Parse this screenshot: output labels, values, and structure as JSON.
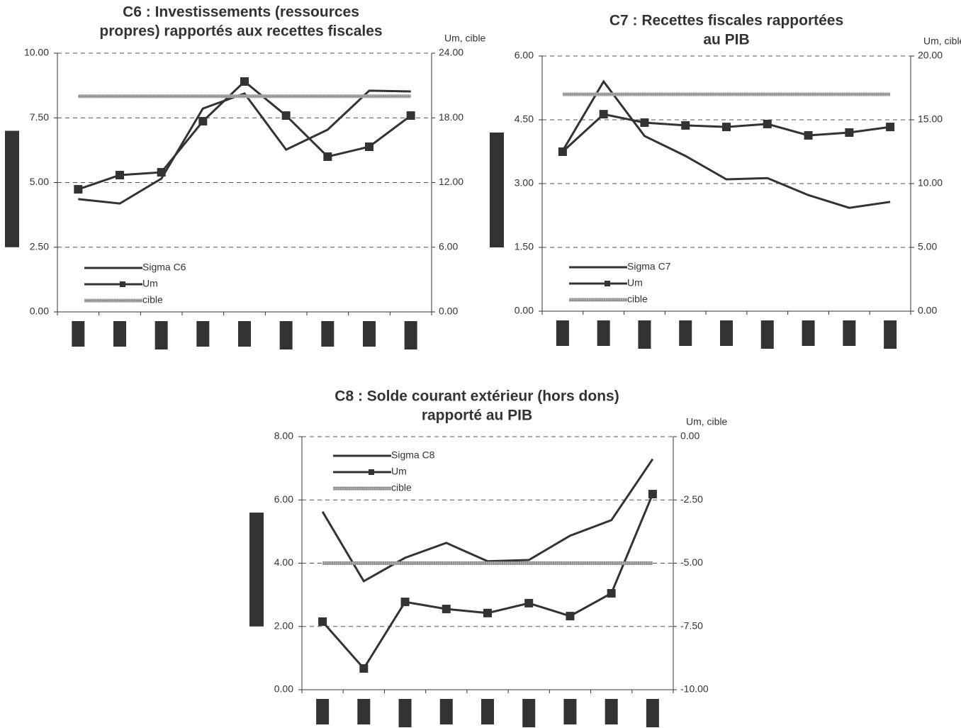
{
  "chart_data": [
    {
      "type": "line",
      "title": [
        "C6 : Investissements (ressources",
        "propres) rapportés aux recettes fiscales"
      ],
      "y2_label": "Um, cible",
      "legend": "lower left",
      "grid": true,
      "categories": [
        null,
        null,
        null,
        null,
        null,
        null,
        null,
        null,
        null
      ],
      "ylim": [
        0,
        10
      ],
      "yticks": [
        {
          "value": 0,
          "label": "0.00"
        },
        {
          "value": 2.5,
          "label": "2.50"
        },
        {
          "value": 5,
          "label": "5.00"
        },
        {
          "value": 7.5,
          "label": "7.50"
        },
        {
          "value": 10,
          "label": "10.00"
        }
      ],
      "y2lim": [
        0,
        24
      ],
      "y2ticks": [
        {
          "value": 0,
          "label": "0.00"
        },
        {
          "value": 6,
          "label": "6.00"
        },
        {
          "value": 12,
          "label": "12.00"
        },
        {
          "value": 18,
          "label": "18.00"
        },
        {
          "value": 24,
          "label": "24.00"
        }
      ],
      "series": [
        {
          "name": "Sigma C6",
          "color": "#333333",
          "values": [
            4.36,
            4.19,
            5.15,
            7.86,
            8.44,
            6.27,
            7.04,
            8.55,
            8.52
          ]
        },
        {
          "name": "Um",
          "color": "#333333",
          "axis": "y2",
          "marker": "square",
          "values": [
            11.37,
            12.69,
            12.95,
            17.69,
            21.37,
            18.21,
            14.4,
            15.32,
            18.21
          ]
        },
        {
          "name": "cible",
          "color": "#999999",
          "axis": "y2",
          "line_style": "hatched",
          "values": [
            20,
            20,
            20,
            20,
            20,
            20,
            20,
            20,
            20
          ]
        }
      ]
    },
    {
      "type": "line",
      "title": [
        "C7 : Recettes fiscales rapportées",
        "au PIB"
      ],
      "y2_label": "Um, cible",
      "legend": "lower left",
      "grid": true,
      "categories": [
        null,
        null,
        null,
        null,
        null,
        null,
        null,
        null,
        null
      ],
      "ylim": [
        0,
        6
      ],
      "yticks": [
        {
          "value": 0,
          "label": "0.00"
        },
        {
          "value": 1.5,
          "label": "1.50"
        },
        {
          "value": 3,
          "label": "3.00"
        },
        {
          "value": 4.5,
          "label": "4.50"
        },
        {
          "value": 6,
          "label": "6.00"
        }
      ],
      "y2lim": [
        0,
        20
      ],
      "y2ticks": [
        {
          "value": 0,
          "label": "0.00"
        },
        {
          "value": 5,
          "label": "5.00"
        },
        {
          "value": 10,
          "label": "10.00"
        },
        {
          "value": 15,
          "label": "15.00"
        },
        {
          "value": 20,
          "label": "20.00"
        }
      ],
      "series": [
        {
          "name": "Sigma C7",
          "color": "#333333",
          "values": [
            3.77,
            5.4,
            4.12,
            3.65,
            3.1,
            3.13,
            2.73,
            2.43,
            2.57
          ]
        },
        {
          "name": "Um",
          "color": "#333333",
          "axis": "y2",
          "marker": "square",
          "values": [
            12.5,
            15.44,
            14.78,
            14.56,
            14.44,
            14.67,
            13.78,
            14.0,
            14.44
          ]
        },
        {
          "name": "cible",
          "color": "#999999",
          "axis": "y2",
          "line_style": "hatched",
          "values": [
            17,
            17,
            17,
            17,
            17,
            17,
            17,
            17,
            17
          ]
        }
      ]
    },
    {
      "type": "line",
      "title": [
        "C8 : Solde courant extérieur (hors dons)",
        "rapporté au PIB"
      ],
      "y2_label": "Um, cible",
      "legend": "upper left",
      "grid": true,
      "categories": [
        null,
        null,
        null,
        null,
        null,
        null,
        null,
        null,
        null
      ],
      "ylim": [
        0,
        8
      ],
      "yticks": [
        {
          "value": 0,
          "label": "0.00"
        },
        {
          "value": 2,
          "label": "2.00"
        },
        {
          "value": 4,
          "label": "4.00"
        },
        {
          "value": 6,
          "label": "6.00"
        },
        {
          "value": 8,
          "label": "8.00"
        }
      ],
      "y2lim": [
        -10,
        0
      ],
      "y2ticks": [
        {
          "value": -10,
          "label": "-10.00"
        },
        {
          "value": -7.5,
          "label": "-7.50"
        },
        {
          "value": -5,
          "label": "-5.00"
        },
        {
          "value": -2.5,
          "label": "-2.50"
        },
        {
          "value": 0,
          "label": "0.00"
        }
      ],
      "series": [
        {
          "name": "Sigma C8",
          "color": "#333333",
          "values": [
            5.63,
            3.43,
            4.17,
            4.64,
            4.06,
            4.1,
            4.87,
            5.36,
            7.29
          ]
        },
        {
          "name": "Um",
          "color": "#333333",
          "axis": "y2",
          "marker": "square",
          "values": [
            -7.31,
            -9.16,
            -6.53,
            -6.81,
            -6.97,
            -6.58,
            -7.09,
            -6.19,
            -2.27
          ]
        },
        {
          "name": "cible",
          "color": "#999999",
          "axis": "y2",
          "line_style": "hatched",
          "values": [
            -5,
            -5,
            -5,
            -5,
            -5,
            -5,
            -5,
            -5,
            -5
          ]
        }
      ]
    }
  ]
}
